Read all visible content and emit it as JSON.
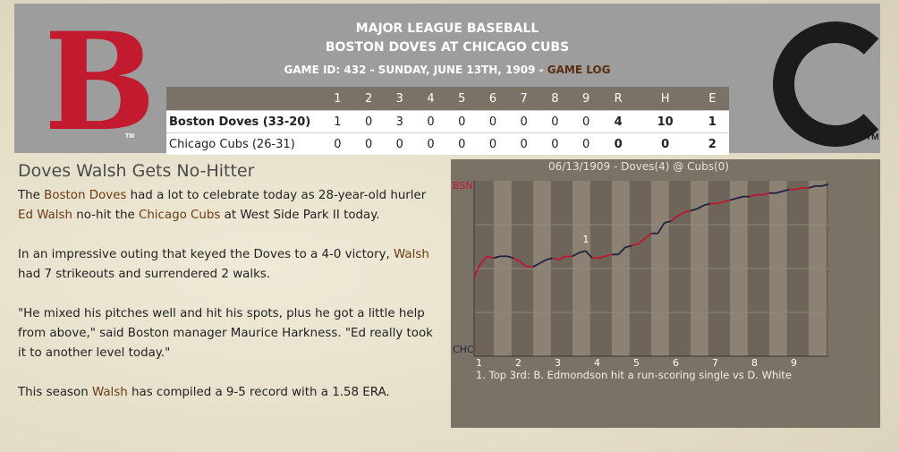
{
  "header": {
    "line1": "MAJOR LEAGUE BASEBALL",
    "line2": "BOSTON DOVES AT CHICAGO CUBS",
    "game_info": "GAME ID: 432 - SUNDAY, JUNE 13TH, 1909 - ",
    "game_log": "GAME LOG",
    "home_logo_letter": "C",
    "away_logo_letter": "B",
    "tm": "TM"
  },
  "boxscore": {
    "headers": [
      "1",
      "2",
      "3",
      "4",
      "5",
      "6",
      "7",
      "8",
      "9",
      "R",
      "H",
      "E"
    ],
    "rows": [
      {
        "team": "Boston Doves (33-20)",
        "innings": [
          "1",
          "0",
          "3",
          "0",
          "0",
          "0",
          "0",
          "0",
          "0"
        ],
        "R": "4",
        "H": "10",
        "E": "1"
      },
      {
        "team": "Chicago Cubs (26-31)",
        "innings": [
          "0",
          "0",
          "0",
          "0",
          "0",
          "0",
          "0",
          "0",
          "0"
        ],
        "R": "0",
        "H": "0",
        "E": "2"
      }
    ]
  },
  "article": {
    "title": "Doves Walsh Gets No-Hitter",
    "p1": {
      "a": "The ",
      "b": "Boston Doves",
      "c": " had a lot to celebrate today as 28-year-old hurler ",
      "d": "Ed Walsh",
      "e": " no-hit the ",
      "f": "Chicago Cubs",
      "g": " at West Side Park II today."
    },
    "p2": {
      "a": "In an impressive outing that keyed the Doves to a 4-0 victory, ",
      "b": "Walsh",
      "c": " had 7 strikeouts and surrendered 2 walks."
    },
    "p3": "\"He mixed his pitches well and hit his spots, plus he got a little help from above,\" said Boston manager Maurice Harkness. \"Ed really took it to another level today.\"",
    "p4": {
      "a": "This season ",
      "b": "Walsh",
      "c": " has compiled a 9-5 record with a 1.58 ERA."
    }
  },
  "chart_data": {
    "type": "line",
    "title": "06/13/1909 - Doves(4) @ Cubs(0)",
    "top_label": "BSN",
    "bottom_label": "CHC",
    "x_ticks": [
      "1",
      "2",
      "3",
      "4",
      "5",
      "6",
      "7",
      "8",
      "9"
    ],
    "annotation_marker": "1",
    "annotation": "1. Top 3rd: B. Edmondson hit a run-scoring single vs D. White",
    "ylim": [
      0,
      1
    ],
    "colors": {
      "away": "#c0152f",
      "home": "#1a2340"
    },
    "series": [
      {
        "values": [
          0.45,
          0.53,
          0.57,
          0.56,
          0.57,
          0.57,
          0.56,
          0.54,
          0.51,
          0.51,
          0.53,
          0.55,
          0.56,
          0.55,
          0.57,
          0.57,
          0.59,
          0.6,
          0.56,
          0.56,
          0.57,
          0.58,
          0.58,
          0.62,
          0.63,
          0.64,
          0.67,
          0.7,
          0.7,
          0.76,
          0.77,
          0.8,
          0.82,
          0.83,
          0.84,
          0.86,
          0.87,
          0.87,
          0.88,
          0.89,
          0.9,
          0.91,
          0.91,
          0.92,
          0.92,
          0.93,
          0.93,
          0.94,
          0.95,
          0.95,
          0.96,
          0.96,
          0.97,
          0.97,
          0.98
        ]
      }
    ]
  }
}
